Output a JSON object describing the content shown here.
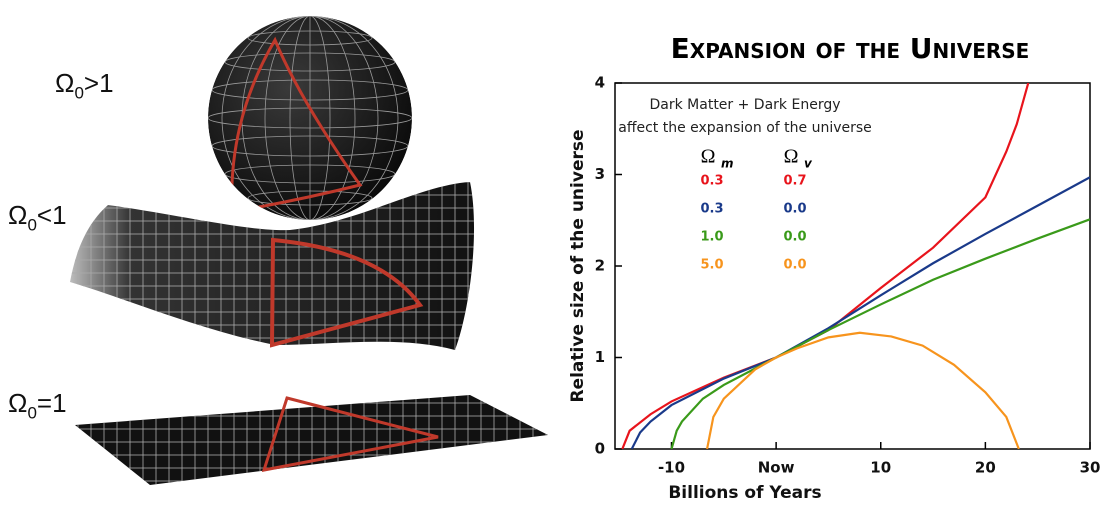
{
  "illustration": {
    "labels": [
      {
        "symbol": "Ω",
        "subscript": "0",
        "relation": ">1"
      },
      {
        "symbol": "Ω",
        "subscript": "0",
        "relation": "<1"
      },
      {
        "symbol": "Ω",
        "subscript": "0",
        "relation": "=1"
      }
    ]
  },
  "chart_data": {
    "type": "line",
    "title": "Expansion of the Universe",
    "x_label": "Billions of Years",
    "y_label": "Relative size of the universe",
    "annotation": [
      "Dark Matter + Dark Energy",
      "affect the expansion of the universe"
    ],
    "legend_headers": [
      {
        "symbol": "Ω",
        "subscript": "m"
      },
      {
        "symbol": "Ω",
        "subscript": "v"
      }
    ],
    "xlim": [
      -15.4,
      30
    ],
    "ylim": [
      0,
      4
    ],
    "xticks": [
      -10,
      {
        "value": 0,
        "label": "Now"
      },
      10,
      20,
      30
    ],
    "yticks": [
      0,
      1,
      2,
      3,
      4
    ],
    "series": [
      {
        "omega_m": "0.3",
        "omega_v": "0.7",
        "color": "#e8141c",
        "x": [
          -14.7,
          -14,
          -12,
          -10,
          -5,
          0,
          5,
          10,
          15,
          20,
          22,
          23,
          24.1
        ],
        "values": [
          0,
          0.2,
          0.38,
          0.52,
          0.78,
          1,
          1.3,
          1.76,
          2.2,
          2.75,
          3.25,
          3.55,
          4
        ]
      },
      {
        "omega_m": "0.3",
        "omega_v": "0.0",
        "color": "#1a3a8a",
        "x": [
          -13.8,
          -13,
          -12,
          -10,
          -5,
          0,
          5,
          10,
          15,
          20,
          25,
          30
        ],
        "values": [
          0,
          0.18,
          0.3,
          0.48,
          0.77,
          1,
          1.32,
          1.68,
          2.03,
          2.35,
          2.66,
          2.97
        ]
      },
      {
        "omega_m": "1.0",
        "omega_v": "0.0",
        "color": "#3a9a1a",
        "x": [
          -10,
          -9.5,
          -9,
          -7,
          -5,
          0,
          5,
          10,
          15,
          20,
          25,
          30
        ],
        "values": [
          0,
          0.2,
          0.3,
          0.55,
          0.7,
          1,
          1.3,
          1.58,
          1.85,
          2.08,
          2.3,
          2.51
        ]
      },
      {
        "omega_m": "5.0",
        "omega_v": "0.0",
        "color": "#f7941d",
        "x": [
          -6.6,
          -6,
          -5,
          -2,
          0,
          2,
          5,
          8,
          11,
          14,
          17,
          20,
          22,
          23.2
        ],
        "values": [
          0,
          0.35,
          0.55,
          0.87,
          1,
          1.1,
          1.22,
          1.27,
          1.23,
          1.13,
          0.92,
          0.62,
          0.35,
          0
        ]
      }
    ]
  }
}
